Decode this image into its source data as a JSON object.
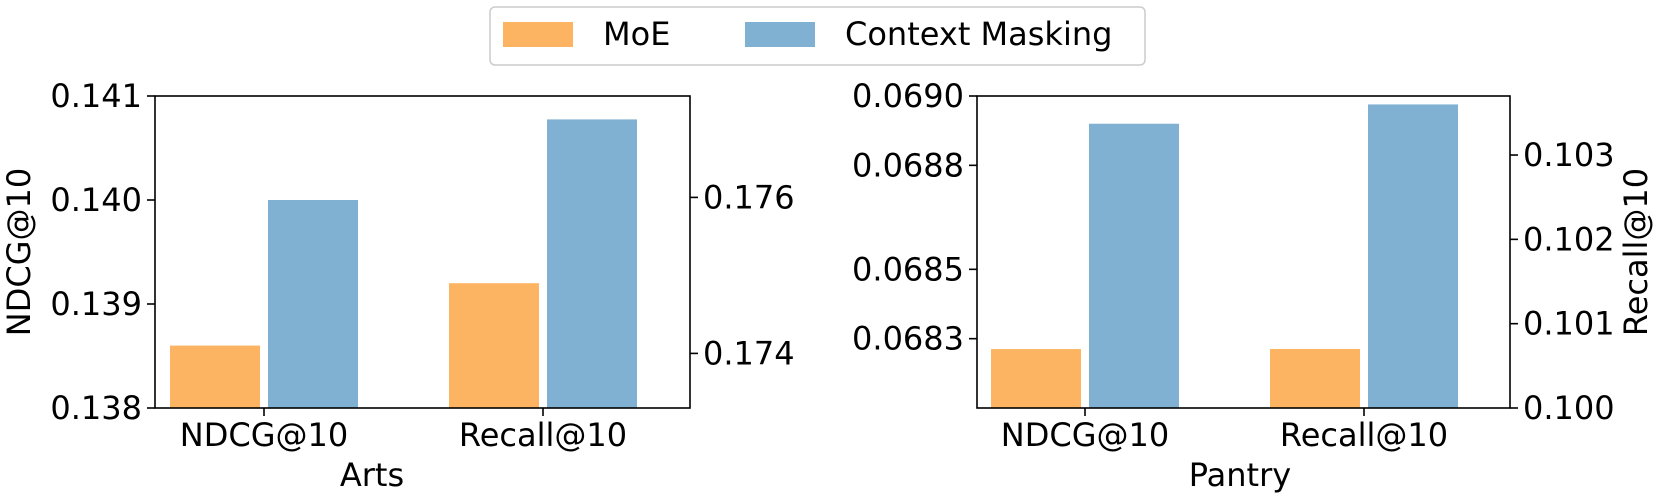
{
  "legend": {
    "placement": "top-center",
    "entries": [
      {
        "label": "MoE",
        "color": "#fdb462"
      },
      {
        "label": "Context Masking",
        "color": "#80b1d3"
      }
    ]
  },
  "chart_data": [
    {
      "type": "bar",
      "xlabel": "Arts",
      "categories": [
        "NDCG@10",
        "Recall@10"
      ],
      "y_left": {
        "label": "NDCG@10",
        "lim": [
          0.138,
          0.141
        ],
        "ticks": [
          "0.138",
          "0.139",
          "0.140",
          "0.141"
        ]
      },
      "y_right": {
        "label": "",
        "lim": [
          0.1733,
          0.1773
        ],
        "ticks": [
          "0.174",
          "0.176"
        ]
      },
      "series": [
        {
          "name": "MoE",
          "color": "#fdb462",
          "values": [
            0.1386,
            0.1749
          ],
          "axis": [
            "left",
            "right"
          ]
        },
        {
          "name": "Context Masking",
          "color": "#80b1d3",
          "values": [
            0.14,
            0.177
          ],
          "axis": [
            "left",
            "right"
          ]
        }
      ]
    },
    {
      "type": "bar",
      "xlabel": "Pantry",
      "categories": [
        "NDCG@10",
        "Recall@10"
      ],
      "y_left": {
        "label": "",
        "lim": [
          0.0681,
          0.069
        ],
        "ticks": [
          "0.0683",
          "0.0685",
          "0.0688",
          "0.0690"
        ]
      },
      "y_right": {
        "label": "Recall@10",
        "lim": [
          0.1,
          0.1037
        ],
        "ticks": [
          "0.100",
          "0.101",
          "0.102",
          "0.103"
        ]
      },
      "series": [
        {
          "name": "MoE",
          "color": "#fdb462",
          "values": [
            0.06827,
            0.1007
          ],
          "axis": [
            "left",
            "right"
          ]
        },
        {
          "name": "Context Masking",
          "color": "#80b1d3",
          "values": [
            0.06892,
            0.1036
          ],
          "axis": [
            "left",
            "right"
          ]
        }
      ]
    }
  ]
}
